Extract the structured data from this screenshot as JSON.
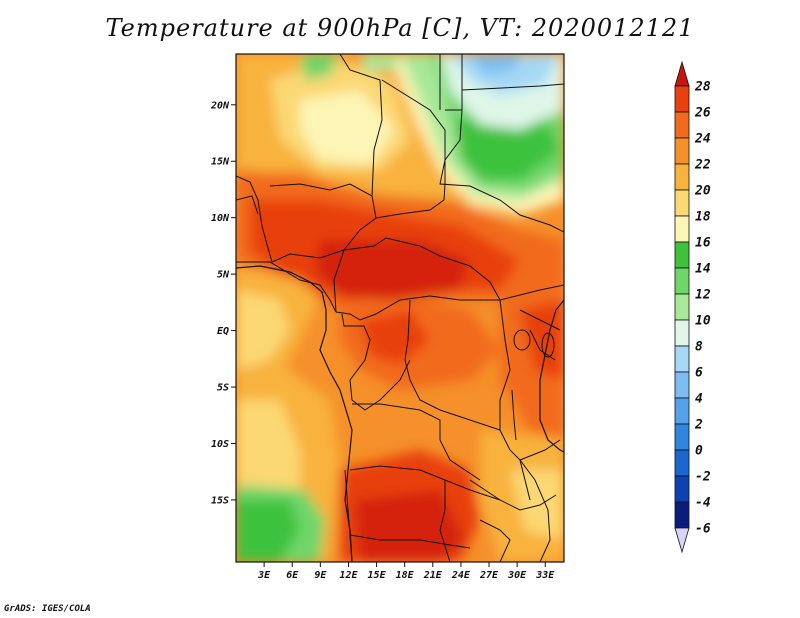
{
  "title": "Temperature at 900hPa [C], VT: 2020012121",
  "credit": "GrADS: IGES/COLA",
  "map": {
    "lat_range": [
      -20.5,
      24.5
    ],
    "lon_range": [
      0,
      35
    ],
    "lat_ticks": [
      {
        "lat": 20,
        "label": "20N"
      },
      {
        "lat": 15,
        "label": "15N"
      },
      {
        "lat": 10,
        "label": "10N"
      },
      {
        "lat": 5,
        "label": "5N"
      },
      {
        "lat": 0,
        "label": "EQ"
      },
      {
        "lat": -5,
        "label": "5S"
      },
      {
        "lat": -10,
        "label": "10S"
      },
      {
        "lat": -15,
        "label": "15S"
      }
    ],
    "lon_ticks": [
      {
        "lon": 3,
        "label": "3E"
      },
      {
        "lon": 6,
        "label": "6E"
      },
      {
        "lon": 9,
        "label": "9E"
      },
      {
        "lon": 12,
        "label": "12E"
      },
      {
        "lon": 15,
        "label": "15E"
      },
      {
        "lon": 18,
        "label": "18E"
      },
      {
        "lon": 21,
        "label": "21E"
      },
      {
        "lon": 24,
        "label": "24E"
      },
      {
        "lon": 27,
        "label": "27E"
      },
      {
        "lon": 30,
        "label": "30E"
      },
      {
        "lon": 33,
        "label": "33E"
      }
    ]
  },
  "colorbar": {
    "levels": [
      "28",
      "26",
      "24",
      "22",
      "20",
      "18",
      "16",
      "14",
      "12",
      "10",
      "8",
      "6",
      "4",
      "2",
      "0",
      "-2",
      "-4",
      "-6"
    ],
    "colors": [
      "#d42210",
      "#e8400f",
      "#f26a1b",
      "#f5902a",
      "#f8b23e",
      "#fbd873",
      "#fdf5b6",
      "#3ec23c",
      "#6fd66a",
      "#a9e899",
      "#dff6e8",
      "#a6d8f5",
      "#7ebdf1",
      "#56a2ea",
      "#2f86e0",
      "#1b66cf",
      "#0d42b0",
      "#0a1d7c"
    ],
    "cap_top_color": "#c8150e",
    "cap_bottom_color": "#d8d4f6"
  }
}
